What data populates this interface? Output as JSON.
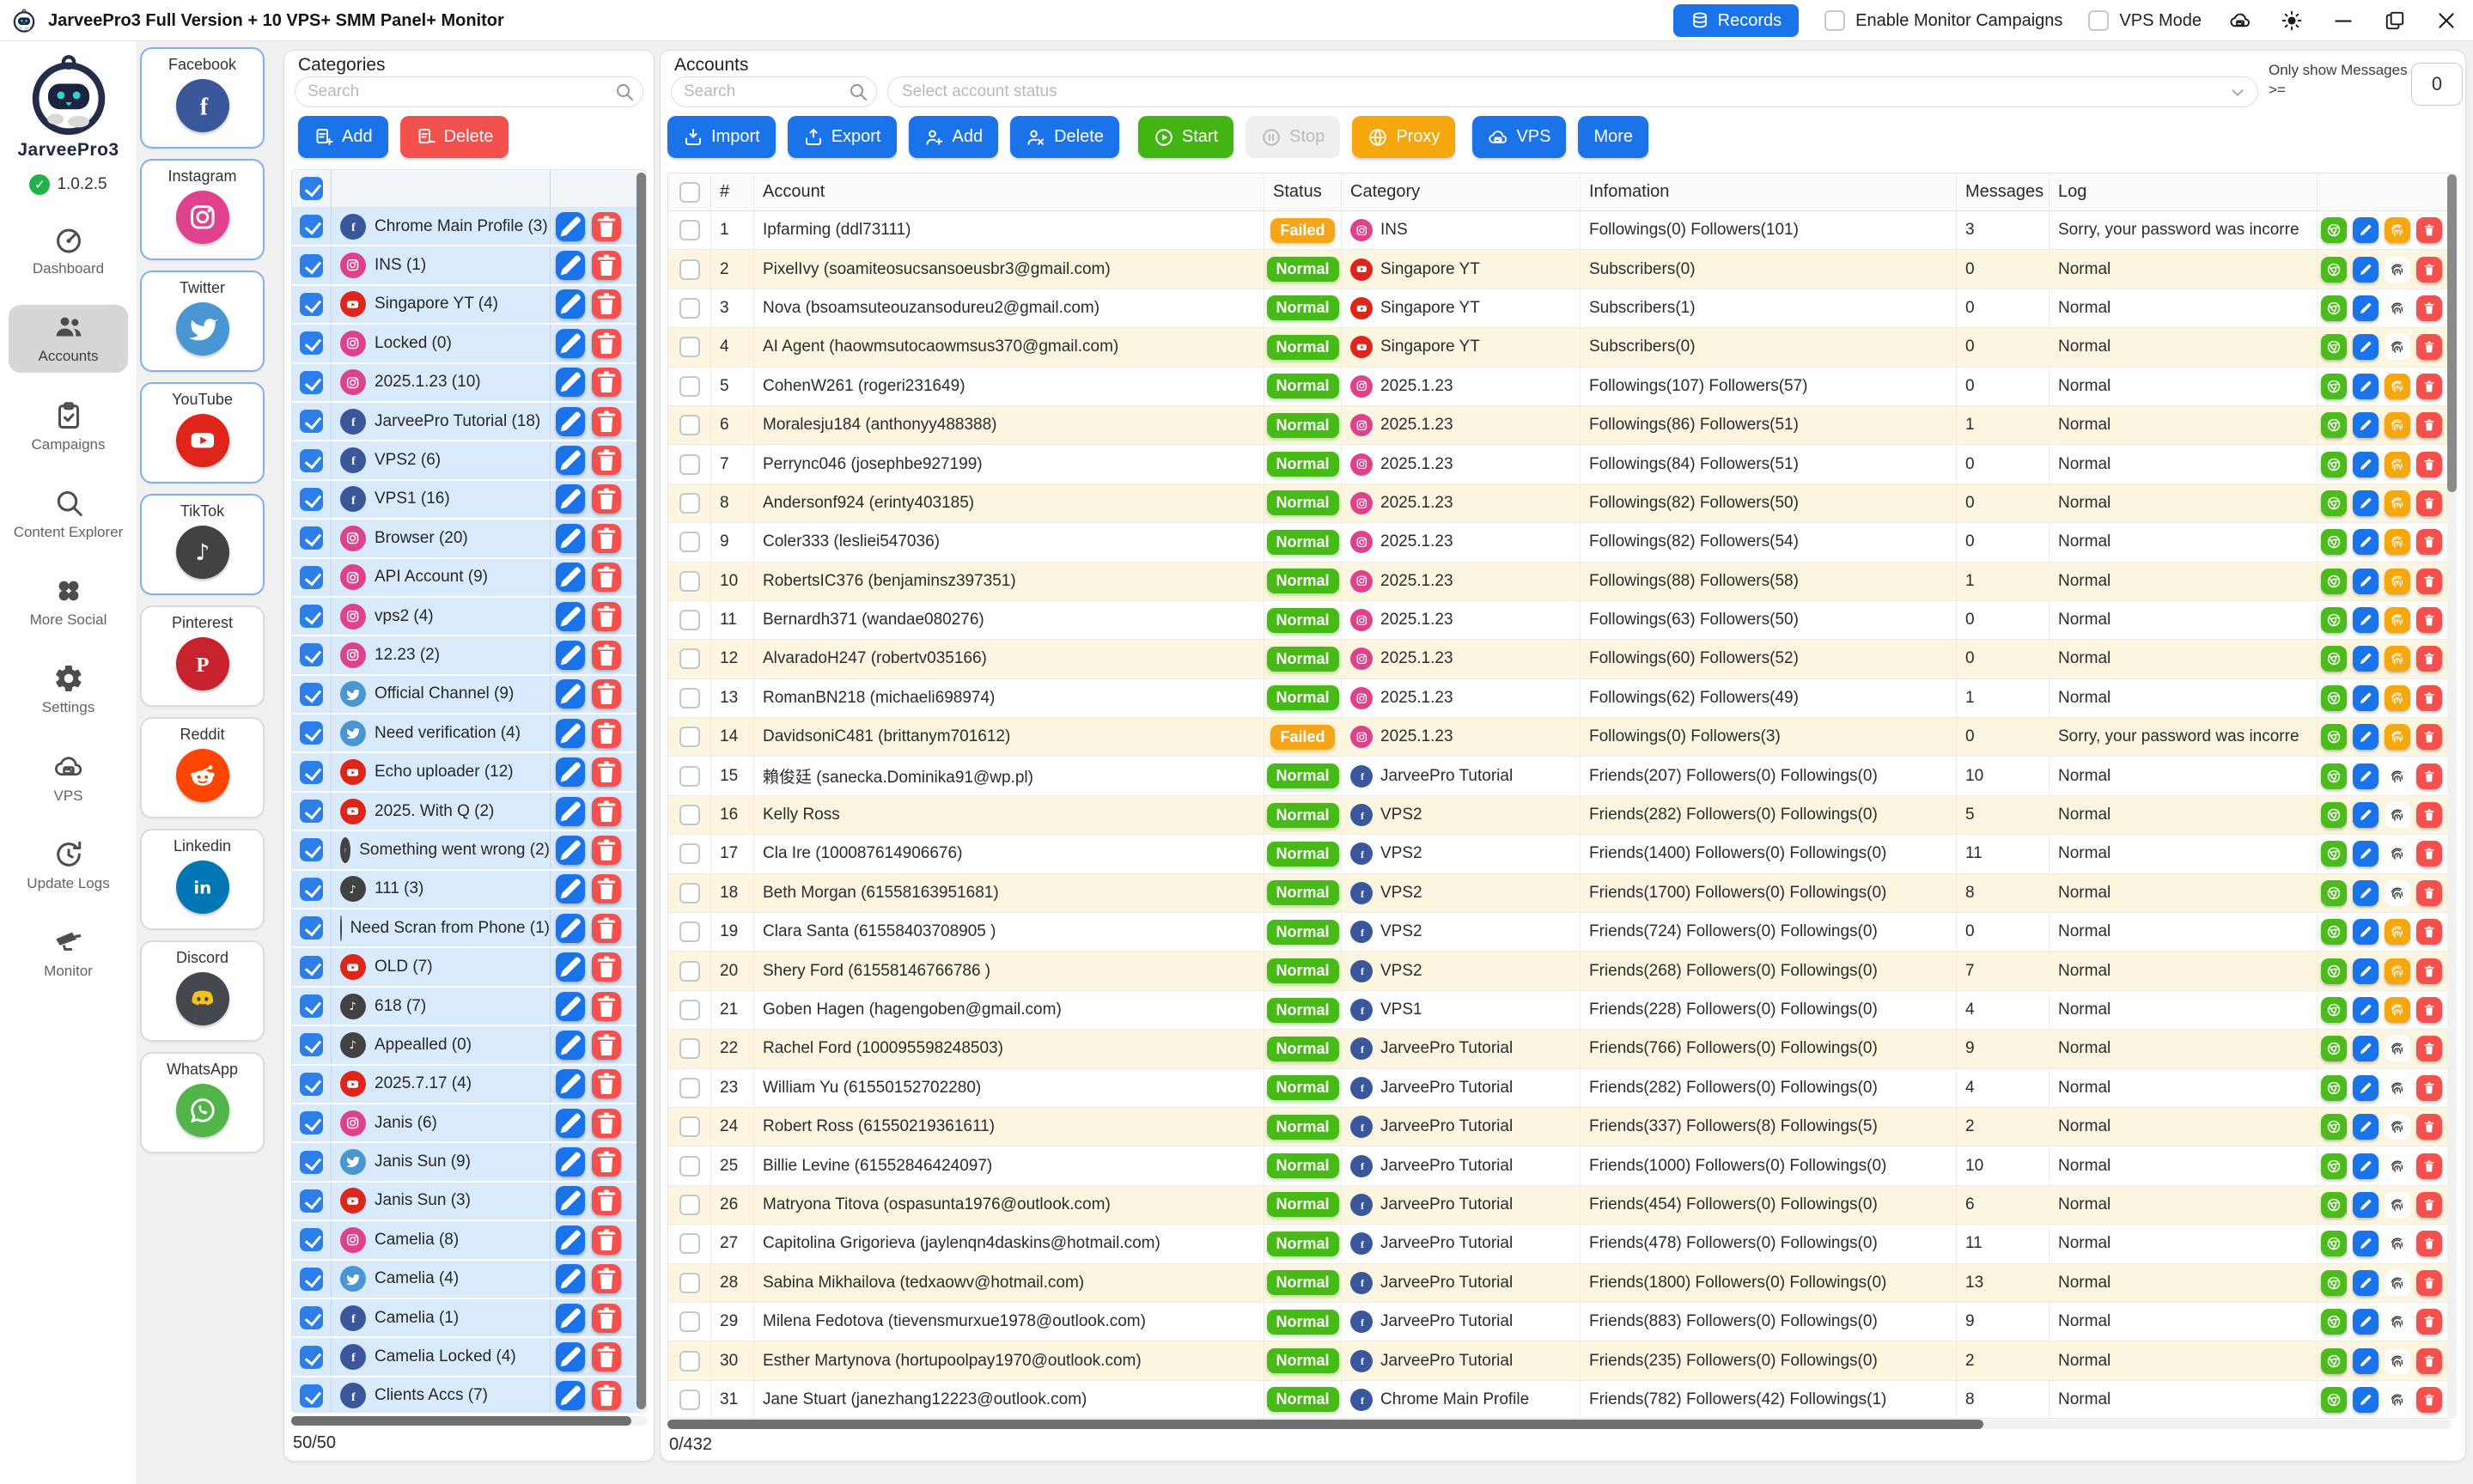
{
  "title_bar": {
    "app_title": "JarveePro3 Full Version + 10 VPS+ SMM Panel+ Monitor",
    "records_label": "Records",
    "enable_monitor_label": "Enable Monitor Campaigns",
    "vps_mode_label": "VPS Mode"
  },
  "colors": {
    "accent_blue": "#1a73e8",
    "action_red": "#f4504e",
    "start_green": "#43b513",
    "badge_green": "#48ba17",
    "badge_orange": "#f5a519",
    "proxy_orange": "#f6a70c",
    "category_row_blue": "#d8eafc",
    "alt_row_cream": "#fcf6e1"
  },
  "nav": {
    "app_name": "JarveePro3",
    "version": "1.0.2.5",
    "items": [
      {
        "label": "Dashboard",
        "icon": "gauge-icon",
        "active": false
      },
      {
        "label": "Accounts",
        "icon": "users-icon",
        "active": true
      },
      {
        "label": "Campaigns",
        "icon": "clipboard-icon",
        "active": false
      },
      {
        "label": "Content Explorer",
        "icon": "magnifier-icon",
        "active": false
      },
      {
        "label": "More Social",
        "icon": "more-social-icon",
        "active": false
      },
      {
        "label": "Settings",
        "icon": "gear-icon",
        "active": false
      },
      {
        "label": "VPS",
        "icon": "cloud-server-icon",
        "active": false
      },
      {
        "label": "Update Logs",
        "icon": "update-logs-icon",
        "active": false
      },
      {
        "label": "Monitor",
        "icon": "cctv-icon",
        "active": false
      }
    ]
  },
  "platforms": [
    {
      "name": "Facebook",
      "key": "facebook",
      "selected": true
    },
    {
      "name": "Instagram",
      "key": "instagram",
      "selected": true
    },
    {
      "name": "Twitter",
      "key": "twitter",
      "selected": true
    },
    {
      "name": "YouTube",
      "key": "youtube",
      "selected": true
    },
    {
      "name": "TikTok",
      "key": "tiktok",
      "selected": true
    },
    {
      "name": "Pinterest",
      "key": "pinterest",
      "selected": false
    },
    {
      "name": "Reddit",
      "key": "reddit",
      "selected": false
    },
    {
      "name": "Linkedin",
      "key": "linkedin",
      "selected": false
    },
    {
      "name": "Discord",
      "key": "discord",
      "selected": false
    },
    {
      "name": "WhatsApp",
      "key": "whatsapp",
      "selected": false
    }
  ],
  "categories": {
    "title": "Categories",
    "search_placeholder": "Search",
    "add_label": "Add",
    "delete_label": "Delete",
    "counter": "50/50",
    "items": [
      {
        "name": "Chrome Main Profile (3)",
        "platform": "facebook"
      },
      {
        "name": "INS (1)",
        "platform": "instagram"
      },
      {
        "name": "Singapore YT (4)",
        "platform": "youtube"
      },
      {
        "name": "Locked (0)",
        "platform": "instagram"
      },
      {
        "name": "2025.1.23 (10)",
        "platform": "instagram"
      },
      {
        "name": "JarveePro Tutorial (18)",
        "platform": "facebook"
      },
      {
        "name": "VPS2 (6)",
        "platform": "facebook"
      },
      {
        "name": "VPS1 (16)",
        "platform": "facebook"
      },
      {
        "name": "Browser (20)",
        "platform": "instagram"
      },
      {
        "name": "API Account (9)",
        "platform": "instagram"
      },
      {
        "name": "vps2 (4)",
        "platform": "instagram"
      },
      {
        "name": "12.23 (2)",
        "platform": "instagram"
      },
      {
        "name": "Official Channel (9)",
        "platform": "twitter"
      },
      {
        "name": "Need verification (4)",
        "platform": "twitter"
      },
      {
        "name": "Echo uploader (12)",
        "platform": "youtube"
      },
      {
        "name": "2025. With Q (2)",
        "platform": "youtube"
      },
      {
        "name": "Something went wrong (2)",
        "platform": "tiktok"
      },
      {
        "name": "111 (3)",
        "platform": "tiktok"
      },
      {
        "name": "Need Scran from Phone (1)",
        "platform": "tiktok"
      },
      {
        "name": "OLD (7)",
        "platform": "youtube"
      },
      {
        "name": "618 (7)",
        "platform": "tiktok"
      },
      {
        "name": "Appealled (0)",
        "platform": "tiktok"
      },
      {
        "name": "2025.7.17 (4)",
        "platform": "youtube"
      },
      {
        "name": "Janis (6)",
        "platform": "instagram"
      },
      {
        "name": "Janis Sun (9)",
        "platform": "twitter"
      },
      {
        "name": "Janis Sun (3)",
        "platform": "youtube"
      },
      {
        "name": "Camelia (8)",
        "platform": "instagram"
      },
      {
        "name": "Camelia (4)",
        "platform": "twitter"
      },
      {
        "name": "Camelia (1)",
        "platform": "facebook"
      },
      {
        "name": "Camelia Locked (4)",
        "platform": "facebook"
      },
      {
        "name": "Clients Accs (7)",
        "platform": "facebook"
      }
    ]
  },
  "accounts": {
    "title": "Accounts",
    "search_placeholder": "Search",
    "status_placeholder": "Select account status",
    "message_filter_label": "Only show Messages >=",
    "message_filter_value": "0",
    "counter": "0/432",
    "toolbar": [
      {
        "label": "Import",
        "icon": "import-icon",
        "style": "blue"
      },
      {
        "label": "Export",
        "icon": "export-icon",
        "style": "blue"
      },
      {
        "label": "Add",
        "icon": "user-plus-icon",
        "style": "blue"
      },
      {
        "label": "Delete",
        "icon": "user-x-icon",
        "style": "blue"
      },
      {
        "label": "Start",
        "icon": "play-icon",
        "style": "green"
      },
      {
        "label": "Stop",
        "icon": "pause-icon",
        "style": "disabled"
      },
      {
        "label": "Proxy",
        "icon": "globe-icon",
        "style": "orange"
      },
      {
        "label": "VPS",
        "icon": "cloud-server-icon",
        "style": "blue2"
      },
      {
        "label": "More",
        "icon": "",
        "style": "blue"
      }
    ],
    "table_headers": {
      "num": "#",
      "account": "Account",
      "status": "Status",
      "category": "Category",
      "information": "Infomation",
      "messages": "Messages",
      "log": "Log"
    },
    "rows": [
      {
        "num": "1",
        "account": "Ipfarming (ddl73111)",
        "status": "Failed",
        "category": "INS",
        "platform": "instagram",
        "information": "Followings(0) Followers(101)",
        "messages": "3",
        "log": "Sorry, your password was incorre",
        "fingerprint_active": true
      },
      {
        "num": "2",
        "account": "PixelIvy (soamiteosucsansoeusbr3@gmail.com)",
        "status": "Normal",
        "category": "Singapore YT",
        "platform": "youtube",
        "information": "Subscribers(0)",
        "messages": "0",
        "log": "Normal",
        "fingerprint_active": false
      },
      {
        "num": "3",
        "account": "Nova (bsoamsuteouzansodureu2@gmail.com)",
        "status": "Normal",
        "category": "Singapore YT",
        "platform": "youtube",
        "information": "Subscribers(1)",
        "messages": "0",
        "log": "Normal",
        "fingerprint_active": false
      },
      {
        "num": "4",
        "account": "AI Agent (haowmsutocaowmsus370@gmail.com)",
        "status": "Normal",
        "category": "Singapore YT",
        "platform": "youtube",
        "information": "Subscribers(0)",
        "messages": "0",
        "log": "Normal",
        "fingerprint_active": false
      },
      {
        "num": "5",
        "account": "CohenW261 (rogeri231649)",
        "status": "Normal",
        "category": "2025.1.23",
        "platform": "instagram",
        "information": "Followings(107) Followers(57)",
        "messages": "0",
        "log": "Normal",
        "fingerprint_active": true
      },
      {
        "num": "6",
        "account": "Moralesju184 (anthonyy488388)",
        "status": "Normal",
        "category": "2025.1.23",
        "platform": "instagram",
        "information": "Followings(86) Followers(51)",
        "messages": "1",
        "log": "Normal",
        "fingerprint_active": true
      },
      {
        "num": "7",
        "account": "Perrync046 (josephbe927199)",
        "status": "Normal",
        "category": "2025.1.23",
        "platform": "instagram",
        "information": "Followings(84) Followers(51)",
        "messages": "0",
        "log": "Normal",
        "fingerprint_active": true
      },
      {
        "num": "8",
        "account": "Andersonf924 (erinty403185)",
        "status": "Normal",
        "category": "2025.1.23",
        "platform": "instagram",
        "information": "Followings(82) Followers(50)",
        "messages": "0",
        "log": "Normal",
        "fingerprint_active": true
      },
      {
        "num": "9",
        "account": "Coler333 (lesliei547036)",
        "status": "Normal",
        "category": "2025.1.23",
        "platform": "instagram",
        "information": "Followings(82) Followers(54)",
        "messages": "0",
        "log": "Normal",
        "fingerprint_active": true
      },
      {
        "num": "10",
        "account": "RobertsIC376 (benjaminsz397351)",
        "status": "Normal",
        "category": "2025.1.23",
        "platform": "instagram",
        "information": "Followings(88) Followers(58)",
        "messages": "1",
        "log": "Normal",
        "fingerprint_active": true
      },
      {
        "num": "11",
        "account": "Bernardh371 (wandae080276)",
        "status": "Normal",
        "category": "2025.1.23",
        "platform": "instagram",
        "information": "Followings(63) Followers(50)",
        "messages": "0",
        "log": "Normal",
        "fingerprint_active": true
      },
      {
        "num": "12",
        "account": "AlvaradoH247 (robertv035166)",
        "status": "Normal",
        "category": "2025.1.23",
        "platform": "instagram",
        "information": "Followings(60) Followers(52)",
        "messages": "0",
        "log": "Normal",
        "fingerprint_active": true
      },
      {
        "num": "13",
        "account": "RomanBN218 (michaeli698974)",
        "status": "Normal",
        "category": "2025.1.23",
        "platform": "instagram",
        "information": "Followings(62) Followers(49)",
        "messages": "1",
        "log": "Normal",
        "fingerprint_active": true
      },
      {
        "num": "14",
        "account": "DavidsoniC481 (brittanym701612)",
        "status": "Failed",
        "category": "2025.1.23",
        "platform": "instagram",
        "information": "Followings(0) Followers(3)",
        "messages": "0",
        "log": "Sorry, your password was incorre",
        "fingerprint_active": true
      },
      {
        "num": "15",
        "account": "賴俊廷 (sanecka.Dominika91@wp.pl)",
        "status": "Normal",
        "category": "JarveePro Tutorial",
        "platform": "facebook",
        "information": "Friends(207) Followers(0) Followings(0)",
        "messages": "10",
        "log": "Normal",
        "fingerprint_active": false
      },
      {
        "num": "16",
        "account": "Kelly Ross",
        "status": "Normal",
        "category": "VPS2",
        "platform": "facebook",
        "information": "Friends(282) Followers(0) Followings(0)",
        "messages": "5",
        "log": "Normal",
        "fingerprint_active": false
      },
      {
        "num": "17",
        "account": "Cla Ire (100087614906676)",
        "status": "Normal",
        "category": "VPS2",
        "platform": "facebook",
        "information": "Friends(1400) Followers(0) Followings(0)",
        "messages": "11",
        "log": "Normal",
        "fingerprint_active": false
      },
      {
        "num": "18",
        "account": "Beth Morgan (61558163951681)",
        "status": "Normal",
        "category": "VPS2",
        "platform": "facebook",
        "information": "Friends(1700) Followers(0) Followings(0)",
        "messages": "8",
        "log": "Normal",
        "fingerprint_active": false
      },
      {
        "num": "19",
        "account": "Clara Santa (61558403708905 )",
        "status": "Normal",
        "category": "VPS2",
        "platform": "facebook",
        "information": "Friends(724) Followers(0) Followings(0)",
        "messages": "0",
        "log": "Normal",
        "fingerprint_active": true
      },
      {
        "num": "20",
        "account": "Shery Ford (61558146766786 )",
        "status": "Normal",
        "category": "VPS2",
        "platform": "facebook",
        "information": "Friends(268) Followers(0) Followings(0)",
        "messages": "7",
        "log": "Normal",
        "fingerprint_active": true
      },
      {
        "num": "21",
        "account": "Goben Hagen (hagengoben@gmail.com)",
        "status": "Normal",
        "category": "VPS1",
        "platform": "facebook",
        "information": "Friends(228) Followers(0) Followings(0)",
        "messages": "4",
        "log": "Normal",
        "fingerprint_active": true
      },
      {
        "num": "22",
        "account": "Rachel Ford (100095598248503)",
        "status": "Normal",
        "category": "JarveePro Tutorial",
        "platform": "facebook",
        "information": "Friends(766) Followers(0) Followings(0)",
        "messages": "9",
        "log": "Normal",
        "fingerprint_active": false
      },
      {
        "num": "23",
        "account": "William Yu (61550152702280)",
        "status": "Normal",
        "category": "JarveePro Tutorial",
        "platform": "facebook",
        "information": "Friends(282) Followers(0) Followings(0)",
        "messages": "4",
        "log": "Normal",
        "fingerprint_active": false
      },
      {
        "num": "24",
        "account": "Robert Ross (61550219361611)",
        "status": "Normal",
        "category": "JarveePro Tutorial",
        "platform": "facebook",
        "information": "Friends(337) Followers(8) Followings(5)",
        "messages": "2",
        "log": "Normal",
        "fingerprint_active": false
      },
      {
        "num": "25",
        "account": "Billie Levine (61552846424097)",
        "status": "Normal",
        "category": "JarveePro Tutorial",
        "platform": "facebook",
        "information": "Friends(1000) Followers(0) Followings(0)",
        "messages": "10",
        "log": "Normal",
        "fingerprint_active": false
      },
      {
        "num": "26",
        "account": "Matryona Titova (ospasunta1976@outlook.com)",
        "status": "Normal",
        "category": "JarveePro Tutorial",
        "platform": "facebook",
        "information": "Friends(454) Followers(0) Followings(0)",
        "messages": "6",
        "log": "Normal",
        "fingerprint_active": false
      },
      {
        "num": "27",
        "account": "Capitolina Grigorieva (jaylenqn4daskins@hotmail.com)",
        "status": "Normal",
        "category": "JarveePro Tutorial",
        "platform": "facebook",
        "information": "Friends(478) Followers(0) Followings(0)",
        "messages": "11",
        "log": "Normal",
        "fingerprint_active": false
      },
      {
        "num": "28",
        "account": "Sabina Mikhailova (tedxaowv@hotmail.com)",
        "status": "Normal",
        "category": "JarveePro Tutorial",
        "platform": "facebook",
        "information": "Friends(1800) Followers(0) Followings(0)",
        "messages": "13",
        "log": "Normal",
        "fingerprint_active": false
      },
      {
        "num": "29",
        "account": "Milena Fedotova (tievensmurxue1978@outlook.com)",
        "status": "Normal",
        "category": "JarveePro Tutorial",
        "platform": "facebook",
        "information": "Friends(883) Followers(0) Followings(0)",
        "messages": "9",
        "log": "Normal",
        "fingerprint_active": false
      },
      {
        "num": "30",
        "account": "Esther Martynova (hortupoolpay1970@outlook.com)",
        "status": "Normal",
        "category": "JarveePro Tutorial",
        "platform": "facebook",
        "information": "Friends(235) Followers(0) Followings(0)",
        "messages": "2",
        "log": "Normal",
        "fingerprint_active": false
      },
      {
        "num": "31",
        "account": "Jane Stuart (janezhang12223@outlook.com)",
        "status": "Normal",
        "category": "Chrome Main Profile",
        "platform": "facebook",
        "information": "Friends(782) Followers(42) Followings(1)",
        "messages": "8",
        "log": "Normal",
        "fingerprint_active": false
      }
    ]
  }
}
